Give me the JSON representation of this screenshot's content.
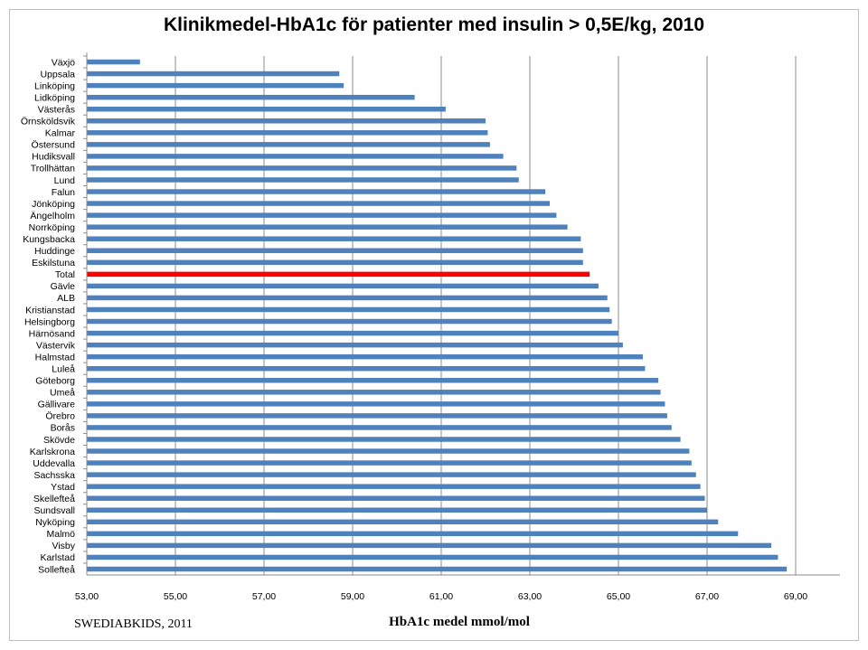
{
  "chart_data": {
    "type": "bar",
    "orientation": "horizontal",
    "title": "Klinikmedel-HbA1c för patienter med insulin > 0,5E/kg, 2010",
    "xlabel": "HbA1c medel mmol/mol",
    "source": "SWEDIABKIDS, 2011",
    "xlim": [
      53,
      70
    ],
    "xticks": [
      "53,00",
      "55,00",
      "57,00",
      "59,00",
      "61,00",
      "63,00",
      "65,00",
      "67,00",
      "69,00"
    ],
    "grid": true,
    "series_color": "#4f81bd",
    "highlight_color": "#ff0000",
    "highlight_category": "Total",
    "categories": [
      "Växjö",
      "Uppsala",
      "Linköping",
      "Lidköping",
      "Västerås",
      "Örnsköldsvik",
      "Kalmar",
      "Östersund",
      "Hudiksvall",
      "Trollhättan",
      "Lund",
      "Falun",
      "Jönköping",
      "Ängelholm",
      "Norrköping",
      "Kungsbacka",
      "Huddinge",
      "Eskilstuna",
      "Total",
      "Gävle",
      "ALB",
      "Kristianstad",
      "Helsingborg",
      "Härnösand",
      "Västervik",
      "Halmstad",
      "Luleå",
      "Göteborg",
      "Umeå",
      "Gällivare",
      "Örebro",
      "Borås",
      "Skövde",
      "Karlskrona",
      "Uddevalla",
      "Sachsska",
      "Ystad",
      "Skellefteå",
      "Sundsvall",
      "Nyköping",
      "Malmö",
      "Visby",
      "Karlstad",
      "Sollefteå"
    ],
    "values": [
      54.2,
      58.7,
      58.8,
      60.4,
      61.1,
      62.0,
      62.05,
      62.1,
      62.4,
      62.7,
      62.75,
      63.35,
      63.45,
      63.6,
      63.85,
      64.15,
      64.2,
      64.2,
      64.35,
      64.55,
      64.75,
      64.8,
      64.85,
      65.0,
      65.1,
      65.55,
      65.6,
      65.9,
      65.95,
      66.05,
      66.1,
      66.2,
      66.4,
      66.6,
      66.65,
      66.75,
      66.85,
      66.95,
      67.0,
      67.25,
      67.7,
      68.45,
      68.6,
      68.8
    ]
  }
}
